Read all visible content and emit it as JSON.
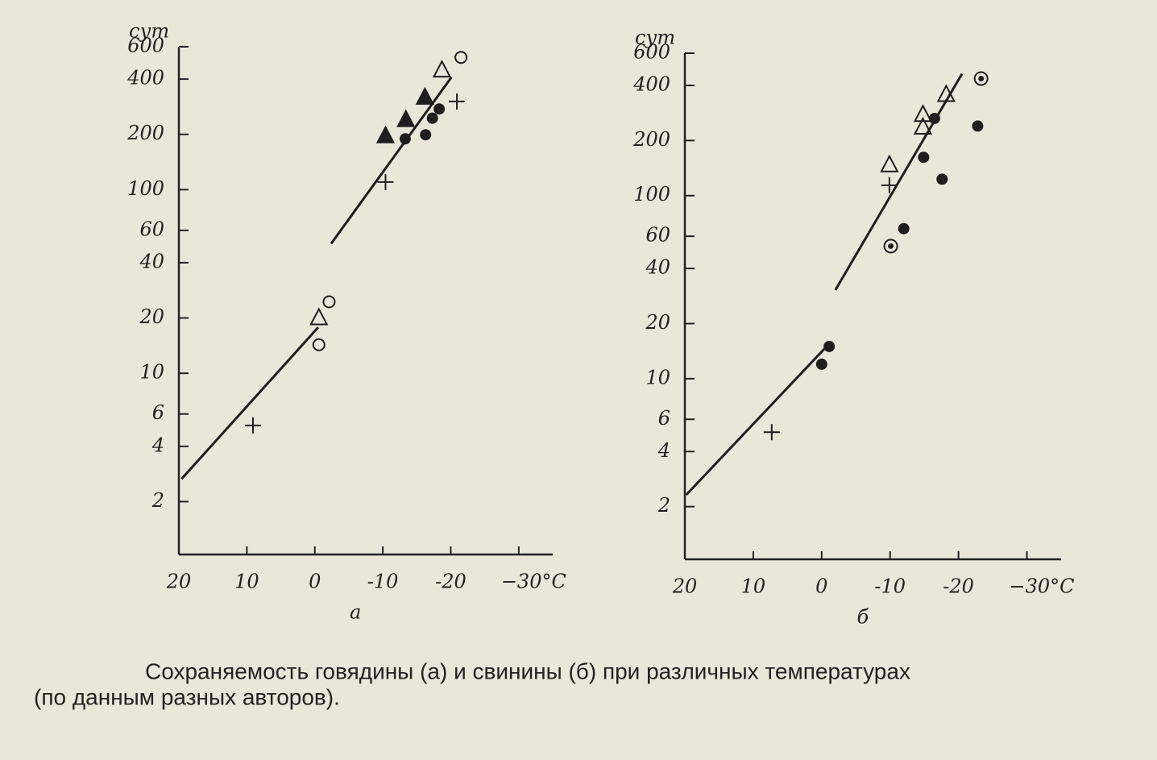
{
  "chart_data": [
    {
      "type": "scatter",
      "ylabel": "сут",
      "label": "а",
      "log_y": true,
      "color": "#1e1e1e",
      "xlim": [
        20,
        -35
      ],
      "xticks": [
        20,
        10,
        0,
        -10,
        -20,
        {
          "value": -30,
          "label": "−30°C"
        }
      ],
      "ylim": [
        1,
        600
      ],
      "yticks": [
        2,
        4,
        6,
        10,
        20,
        40,
        60,
        100,
        200,
        400,
        600
      ],
      "series": [
        {
          "marker": "circle-open",
          "x": [
            -21.5,
            -2.1,
            -0.6
          ],
          "values": [
            525,
            24.5,
            14.3
          ]
        },
        {
          "marker": "triangle-open",
          "x": [
            -18.7,
            -0.6
          ],
          "values": [
            447,
            20
          ]
        },
        {
          "marker": "triangle-filled",
          "x": [
            -10.4,
            -13.4,
            -16.2
          ],
          "values": [
            196,
            240,
            318
          ]
        },
        {
          "marker": "circle-filled",
          "x": [
            -13.3,
            -16.3,
            -17.3,
            -18.3
          ],
          "values": [
            189,
            199,
            245,
            275
          ]
        },
        {
          "marker": "plus",
          "x": [
            -20.9,
            -10.4,
            9.1
          ],
          "values": [
            302,
            110,
            5.2
          ]
        },
        {
          "marker": "line",
          "x": [
            -2.4,
            -20.1
          ],
          "values": [
            50.8,
            409
          ]
        },
        {
          "marker": "line",
          "x": [
            19.6,
            -0.5
          ],
          "values": [
            2.66,
            17.8
          ]
        }
      ]
    },
    {
      "type": "scatter",
      "ylabel": "сут",
      "label": "б",
      "log_y": true,
      "color": "#1e1e1e",
      "xlim": [
        20,
        -35
      ],
      "xticks": [
        20,
        10,
        0,
        -10,
        -20,
        {
          "value": -30,
          "label": "−30°C"
        }
      ],
      "ylim": [
        1,
        600
      ],
      "yticks": [
        2,
        4,
        6,
        10,
        20,
        40,
        60,
        100,
        200,
        400,
        600
      ],
      "series": [
        {
          "marker": "circle-dot",
          "x": [
            -23.3,
            -10.1
          ],
          "values": [
            436,
            53
          ]
        },
        {
          "marker": "triangle-open",
          "x": [
            -9.9,
            -14.8,
            -14.8,
            -18.2
          ],
          "values": [
            147,
            277,
            236,
            356
          ]
        },
        {
          "marker": "circle-filled",
          "x": [
            -16.5,
            -14.9,
            -17.6,
            -22.8,
            -12,
            -1.1,
            0
          ],
          "values": [
            264,
            162,
            123,
            240,
            66,
            15,
            12
          ]
        },
        {
          "marker": "plus",
          "x": [
            -9.9,
            7.3
          ],
          "values": [
            114,
            5.1
          ]
        },
        {
          "marker": "line",
          "x": [
            -2,
            -20.5
          ],
          "values": [
            30.5,
            462
          ]
        },
        {
          "marker": "line",
          "x": [
            19.8,
            -0.5
          ],
          "values": [
            2.32,
            14.7
          ]
        }
      ]
    }
  ],
  "caption": [
    "Сохраняемость говядины (а) и свинины (б) при различных температурах",
    "(по данным разных авторов)."
  ]
}
